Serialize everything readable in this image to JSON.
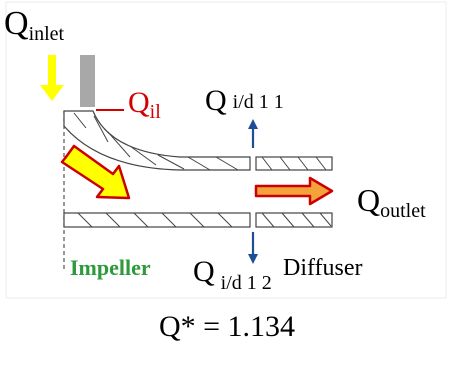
{
  "labels": {
    "q_inlet": {
      "main": "Q",
      "sub": "inlet"
    },
    "q_il": {
      "main": "Q",
      "sub": "il"
    },
    "q_id11": {
      "main": "Q",
      "sub": "i/d 1 1"
    },
    "q_outlet": {
      "main": "Q",
      "sub": "outlet"
    },
    "q_id12": {
      "main": "Q",
      "sub": "i/d 1 2"
    },
    "impeller": "Impeller",
    "diffuser": "Diffuser"
  },
  "caption": "Q* = 1.134",
  "colors": {
    "inlet_arrow": "#ffff00",
    "flow_arrow_fill": "#ffff00",
    "flow_arrow_stroke": "#cc0000",
    "outlet_arrow_fill": "#f4a23c",
    "leak_arrow": "#1f4e99",
    "impeller_text": "#2e9a3c",
    "q_il_text": "#d40000",
    "wall_block": "#a8a8a8"
  }
}
